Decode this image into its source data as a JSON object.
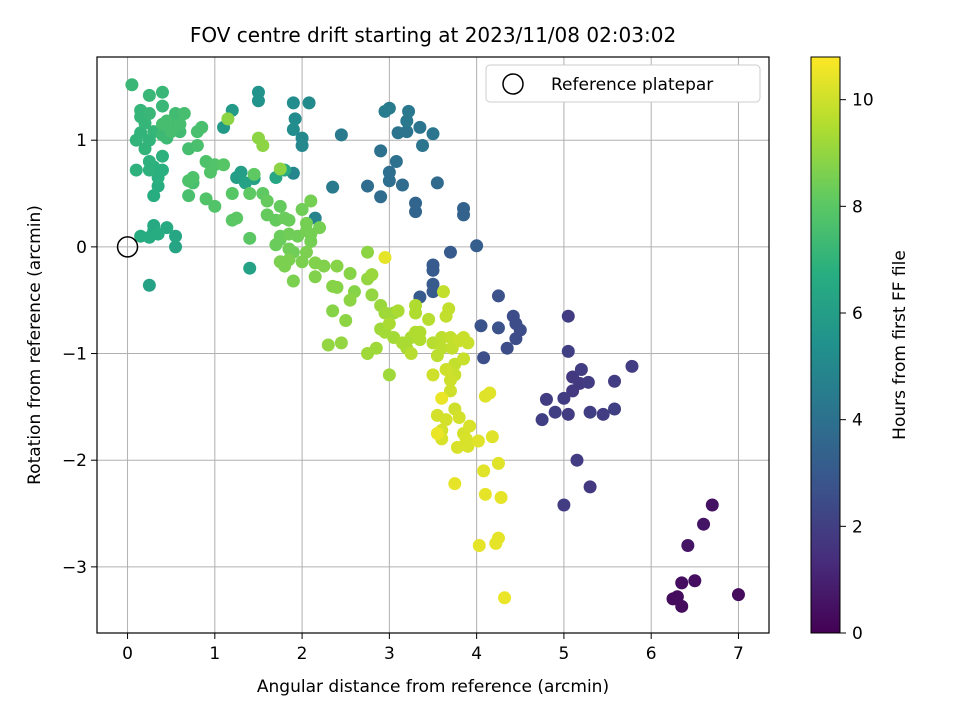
{
  "chart_data": {
    "type": "scatter",
    "title": "FOV centre drift starting at 2023/11/08 02:03:02",
    "xlabel": "Angular distance from reference (arcmin)",
    "ylabel": "Rotation from reference (arcmin)",
    "xlim": [
      -0.35,
      7.35
    ],
    "ylim": [
      -3.62,
      1.78
    ],
    "xticks": [
      0,
      1,
      2,
      3,
      4,
      5,
      6,
      7
    ],
    "yticks": [
      1,
      0,
      -1,
      -2,
      -3
    ],
    "grid": true,
    "legend": {
      "placement": "top-right",
      "entries": [
        "Reference platepar"
      ]
    },
    "colorbar": {
      "label": "Hours from first FF file",
      "range": [
        0,
        10.8
      ],
      "ticks": [
        0,
        2,
        4,
        6,
        8,
        10
      ],
      "colormap": "viridis"
    },
    "reference_point": {
      "x": 0,
      "y": 0
    },
    "series_points": [
      [
        6.25,
        -3.3,
        0.3
      ],
      [
        6.35,
        -3.37,
        0.3
      ],
      [
        6.35,
        -3.15,
        0.4
      ],
      [
        6.5,
        -3.13,
        0.4
      ],
      [
        7.0,
        -3.26,
        0.3
      ],
      [
        6.3,
        -3.28,
        0.3
      ],
      [
        6.42,
        -2.8,
        0.6
      ],
      [
        6.6,
        -2.6,
        0.6
      ],
      [
        6.7,
        -2.42,
        0.5
      ],
      [
        5.0,
        -2.42,
        1.9
      ],
      [
        5.3,
        -2.25,
        1.8
      ],
      [
        5.15,
        -2.0,
        1.9
      ],
      [
        4.75,
        -1.62,
        2.0
      ],
      [
        4.9,
        -1.55,
        2.0
      ],
      [
        5.05,
        -1.57,
        1.9
      ],
      [
        5.3,
        -1.55,
        2.0
      ],
      [
        5.45,
        -1.57,
        1.9
      ],
      [
        5.58,
        -1.52,
        2.0
      ],
      [
        5.1,
        -1.35,
        1.8
      ],
      [
        5.1,
        -1.22,
        1.8
      ],
      [
        5.18,
        -1.28,
        1.8
      ],
      [
        5.28,
        -1.27,
        1.9
      ],
      [
        5.58,
        -1.26,
        1.9
      ],
      [
        5.78,
        -1.12,
        1.9
      ],
      [
        5.0,
        -1.42,
        1.9
      ],
      [
        5.05,
        -0.98,
        2.0
      ],
      [
        5.05,
        -0.65,
        1.9
      ],
      [
        4.8,
        -1.43,
        1.9
      ],
      [
        5.2,
        -1.15,
        1.9
      ],
      [
        4.42,
        -0.65,
        2.5
      ],
      [
        4.45,
        -0.72,
        2.5
      ],
      [
        4.5,
        -0.78,
        2.5
      ],
      [
        4.45,
        -0.86,
        2.5
      ],
      [
        4.35,
        -0.95,
        2.5
      ],
      [
        4.25,
        -0.46,
        2.7
      ],
      [
        4.25,
        -0.76,
        2.7
      ],
      [
        4.08,
        -1.04,
        2.6
      ],
      [
        4.05,
        -0.74,
        2.8
      ],
      [
        3.5,
        -0.17,
        3.1
      ],
      [
        3.5,
        -0.22,
        3.1
      ],
      [
        3.5,
        -0.35,
        3.1
      ],
      [
        3.5,
        -0.42,
        3.1
      ],
      [
        3.35,
        -0.47,
        3.1
      ],
      [
        3.7,
        -0.05,
        3.1
      ],
      [
        4.0,
        0.01,
        3.2
      ],
      [
        3.85,
        0.36,
        3.4
      ],
      [
        3.85,
        0.3,
        3.4
      ],
      [
        3.3,
        0.33,
        3.5
      ],
      [
        3.3,
        0.41,
        3.5
      ],
      [
        3.55,
        0.6,
        3.7
      ],
      [
        3.15,
        0.58,
        3.8
      ],
      [
        2.9,
        0.47,
        3.8
      ],
      [
        2.75,
        0.57,
        3.8
      ],
      [
        3.0,
        0.62,
        3.9
      ],
      [
        3.0,
        0.7,
        3.9
      ],
      [
        3.08,
        0.8,
        4.0
      ],
      [
        2.9,
        0.9,
        4.0
      ],
      [
        3.1,
        1.07,
        4.1
      ],
      [
        3.2,
        1.08,
        4.1
      ],
      [
        3.35,
        1.12,
        4.2
      ],
      [
        3.38,
        0.95,
        4.2
      ],
      [
        3.5,
        1.06,
        4.2
      ],
      [
        3.2,
        1.18,
        4.3
      ],
      [
        3.22,
        1.27,
        4.3
      ],
      [
        3.0,
        1.3,
        4.4
      ],
      [
        2.95,
        1.27,
        4.5
      ],
      [
        2.45,
        1.05,
        4.4
      ],
      [
        2.35,
        0.56,
        4.4
      ],
      [
        2.15,
        0.27,
        4.8
      ],
      [
        1.9,
        0.69,
        4.9
      ],
      [
        2.0,
        0.95,
        5.0
      ],
      [
        2.0,
        1.02,
        5.0
      ],
      [
        2.08,
        1.35,
        5.1
      ],
      [
        1.9,
        1.35,
        5.2
      ],
      [
        1.9,
        1.1,
        5.2
      ],
      [
        1.92,
        1.2,
        5.2
      ],
      [
        1.5,
        1.45,
        5.5
      ],
      [
        1.5,
        1.37,
        5.5
      ],
      [
        1.2,
        1.28,
        5.8
      ],
      [
        1.1,
        1.12,
        5.8
      ],
      [
        1.3,
        0.7,
        6.0
      ],
      [
        1.25,
        0.65,
        6.0
      ],
      [
        1.35,
        0.6,
        6.2
      ],
      [
        1.45,
        0.64,
        6.2
      ],
      [
        1.7,
        0.65,
        6.4
      ],
      [
        1.8,
        0.72,
        6.5
      ],
      [
        1.4,
        -0.2,
        6.2
      ],
      [
        0.25,
        -0.36,
        6.2
      ],
      [
        0.55,
        0.0,
        6.3
      ],
      [
        0.55,
        0.1,
        6.4
      ],
      [
        0.45,
        0.18,
        6.5
      ],
      [
        0.3,
        0.15,
        6.5
      ],
      [
        0.3,
        0.2,
        6.5
      ],
      [
        0.15,
        0.1,
        6.6
      ],
      [
        0.25,
        0.09,
        6.6
      ],
      [
        0.35,
        0.12,
        6.6
      ],
      [
        0.3,
        0.48,
        6.7
      ],
      [
        0.35,
        0.57,
        6.7
      ],
      [
        0.35,
        0.65,
        6.8
      ],
      [
        0.4,
        0.72,
        6.8
      ],
      [
        0.3,
        0.75,
        6.8
      ],
      [
        0.25,
        0.72,
        6.9
      ],
      [
        0.1,
        0.72,
        6.9
      ],
      [
        0.25,
        0.8,
        6.9
      ],
      [
        0.4,
        0.85,
        6.9
      ],
      [
        0.2,
        0.92,
        7.0
      ],
      [
        0.25,
        1.0,
        7.0
      ],
      [
        0.1,
        1.0,
        7.0
      ],
      [
        0.15,
        1.07,
        7.0
      ],
      [
        0.3,
        1.08,
        7.1
      ],
      [
        0.2,
        1.16,
        7.1
      ],
      [
        0.15,
        1.22,
        7.1
      ],
      [
        0.15,
        1.28,
        7.1
      ],
      [
        0.25,
        1.25,
        7.2
      ],
      [
        0.4,
        1.32,
        7.2
      ],
      [
        0.4,
        1.45,
        7.2
      ],
      [
        0.05,
        1.52,
        7.2
      ],
      [
        0.25,
        1.42,
        7.2
      ],
      [
        0.45,
        1.1,
        7.3
      ],
      [
        0.4,
        1.05,
        7.3
      ],
      [
        0.45,
        1.02,
        7.3
      ],
      [
        0.5,
        1.15,
        7.4
      ],
      [
        0.55,
        1.12,
        7.4
      ],
      [
        0.6,
        1.08,
        7.4
      ],
      [
        0.55,
        1.25,
        7.4
      ],
      [
        0.6,
        1.22,
        7.4
      ],
      [
        0.65,
        1.25,
        7.5
      ],
      [
        0.6,
        1.15,
        7.5
      ],
      [
        0.45,
        1.18,
        7.5
      ],
      [
        0.5,
        1.08,
        7.5
      ],
      [
        0.4,
        1.15,
        7.5
      ],
      [
        0.7,
        0.92,
        7.5
      ],
      [
        0.8,
        0.95,
        7.6
      ],
      [
        0.85,
        1.12,
        7.6
      ],
      [
        0.8,
        1.08,
        7.6
      ],
      [
        0.75,
        0.6,
        7.6
      ],
      [
        0.7,
        0.48,
        7.6
      ],
      [
        0.7,
        0.62,
        7.7
      ],
      [
        0.75,
        0.65,
        7.7
      ],
      [
        0.9,
        0.8,
        7.7
      ],
      [
        1.0,
        0.77,
        7.8
      ],
      [
        0.9,
        0.45,
        7.8
      ],
      [
        1.0,
        0.38,
        7.8
      ],
      [
        0.95,
        0.7,
        7.8
      ],
      [
        1.1,
        0.77,
        7.9
      ],
      [
        1.2,
        0.5,
        7.9
      ],
      [
        1.2,
        0.25,
        8.0
      ],
      [
        1.25,
        0.27,
        8.0
      ],
      [
        1.4,
        0.08,
        8.0
      ],
      [
        1.4,
        0.5,
        8.1
      ],
      [
        1.45,
        0.68,
        8.1
      ],
      [
        1.55,
        0.5,
        8.1
      ],
      [
        1.6,
        0.43,
        8.2
      ],
      [
        1.6,
        0.3,
        8.2
      ],
      [
        1.7,
        0.25,
        8.2
      ],
      [
        1.75,
        0.38,
        8.2
      ],
      [
        1.8,
        0.27,
        8.3
      ],
      [
        1.85,
        0.25,
        8.3
      ],
      [
        1.75,
        0.07,
        8.3
      ],
      [
        1.7,
        0.02,
        8.3
      ],
      [
        1.75,
        0.1,
        8.3
      ],
      [
        1.85,
        -0.02,
        8.4
      ],
      [
        1.85,
        0.12,
        8.4
      ],
      [
        1.9,
        -0.05,
        8.4
      ],
      [
        1.95,
        0.1,
        8.4
      ],
      [
        2.0,
        0.35,
        8.4
      ],
      [
        2.05,
        0.15,
        8.5
      ],
      [
        2.05,
        0.22,
        8.5
      ],
      [
        2.1,
        0.05,
        8.5
      ],
      [
        2.1,
        0.12,
        8.5
      ],
      [
        2.2,
        0.18,
        8.5
      ],
      [
        2.1,
        0.43,
        8.5
      ],
      [
        1.75,
        -0.14,
        8.6
      ],
      [
        1.8,
        -0.18,
        8.6
      ],
      [
        1.85,
        -0.12,
        8.6
      ],
      [
        1.9,
        -0.32,
        8.6
      ],
      [
        2.0,
        -0.14,
        8.6
      ],
      [
        2.05,
        -0.05,
        8.6
      ],
      [
        2.15,
        -0.15,
        8.7
      ],
      [
        2.15,
        -0.28,
        8.7
      ],
      [
        2.25,
        -0.18,
        8.7
      ],
      [
        2.35,
        -0.37,
        8.8
      ],
      [
        2.4,
        -0.38,
        8.8
      ],
      [
        2.35,
        -0.6,
        8.8
      ],
      [
        2.4,
        -0.18,
        8.8
      ],
      [
        2.55,
        -0.25,
        8.8
      ],
      [
        2.6,
        -0.42,
        8.8
      ],
      [
        2.55,
        -0.5,
        8.9
      ],
      [
        2.5,
        -0.69,
        8.9
      ],
      [
        1.5,
        1.02,
        8.9
      ],
      [
        1.55,
        0.95,
        8.9
      ],
      [
        1.15,
        1.2,
        8.9
      ],
      [
        1.75,
        0.73,
        8.9
      ],
      [
        2.3,
        -0.92,
        9.0
      ],
      [
        2.45,
        -0.9,
        9.0
      ],
      [
        2.75,
        -0.3,
        9.0
      ],
      [
        2.8,
        -0.45,
        9.0
      ],
      [
        2.8,
        -0.26,
        9.1
      ],
      [
        2.9,
        -0.55,
        9.1
      ],
      [
        2.95,
        -0.62,
        9.2
      ],
      [
        3.05,
        -0.62,
        9.2
      ],
      [
        2.75,
        -1.0,
        9.2
      ],
      [
        2.85,
        -0.95,
        9.2
      ],
      [
        2.9,
        -0.77,
        9.2
      ],
      [
        2.95,
        -0.8,
        9.3
      ],
      [
        3.05,
        -0.85,
        9.3
      ],
      [
        3.0,
        -0.72,
        9.4
      ],
      [
        3.1,
        -0.6,
        9.4
      ],
      [
        3.15,
        -0.9,
        9.4
      ],
      [
        3.2,
        -0.95,
        9.4
      ],
      [
        3.25,
        -0.85,
        9.4
      ],
      [
        3.3,
        -0.8,
        9.5
      ],
      [
        3.35,
        -0.8,
        9.5
      ],
      [
        3.3,
        -0.62,
        9.5
      ],
      [
        3.3,
        -0.55,
        9.5
      ],
      [
        3.35,
        -0.87,
        9.5
      ],
      [
        3.25,
        -1.0,
        9.6
      ],
      [
        3.45,
        -0.68,
        9.6
      ],
      [
        3.5,
        -0.9,
        9.6
      ],
      [
        3.55,
        -1.02,
        9.7
      ],
      [
        3.6,
        -0.95,
        9.7
      ],
      [
        3.6,
        -0.85,
        9.7
      ],
      [
        3.62,
        -0.42,
        9.8
      ],
      [
        3.68,
        -0.58,
        9.8
      ],
      [
        3.65,
        -0.65,
        9.8
      ],
      [
        3.7,
        -0.85,
        9.8
      ],
      [
        3.72,
        -0.95,
        9.8
      ],
      [
        3.75,
        -1.1,
        9.8
      ],
      [
        3.8,
        -0.88,
        9.9
      ],
      [
        3.85,
        -0.85,
        9.9
      ],
      [
        3.9,
        -0.9,
        9.9
      ],
      [
        3.85,
        -1.05,
        9.9
      ],
      [
        3.75,
        -1.2,
        9.9
      ],
      [
        3.65,
        -1.15,
        10.0
      ],
      [
        3.5,
        -1.2,
        10.0
      ],
      [
        3.7,
        -1.25,
        10.0
      ],
      [
        3.7,
        -1.35,
        10.0
      ],
      [
        3.75,
        -1.52,
        10.0
      ],
      [
        3.55,
        -1.58,
        10.1
      ],
      [
        3.65,
        -1.62,
        10.1
      ],
      [
        3.8,
        -1.6,
        10.1
      ],
      [
        3.85,
        -1.75,
        10.1
      ],
      [
        3.6,
        -1.72,
        10.1
      ],
      [
        3.6,
        -1.8,
        10.2
      ],
      [
        3.78,
        -1.88,
        10.2
      ],
      [
        3.88,
        -1.8,
        10.2
      ],
      [
        3.92,
        -1.68,
        10.2
      ],
      [
        3.9,
        -1.87,
        10.2
      ],
      [
        4.02,
        -1.82,
        10.3
      ],
      [
        4.18,
        -1.78,
        10.3
      ],
      [
        4.1,
        -1.4,
        10.3
      ],
      [
        4.15,
        -1.37,
        10.3
      ],
      [
        4.25,
        -2.03,
        10.3
      ],
      [
        4.08,
        -2.1,
        10.3
      ],
      [
        4.1,
        -2.32,
        10.4
      ],
      [
        4.28,
        -2.35,
        10.4
      ],
      [
        3.75,
        -2.22,
        10.4
      ],
      [
        4.25,
        -2.73,
        10.4
      ],
      [
        4.22,
        -2.78,
        10.4
      ],
      [
        4.03,
        -2.8,
        10.4
      ],
      [
        4.32,
        -3.29,
        10.5
      ],
      [
        3.55,
        -1.75,
        10.5
      ],
      [
        3.6,
        -1.42,
        10.5
      ],
      [
        2.95,
        -0.1,
        10.4
      ],
      [
        3.0,
        -1.2,
        9.2
      ],
      [
        2.75,
        -0.05,
        8.9
      ]
    ]
  }
}
